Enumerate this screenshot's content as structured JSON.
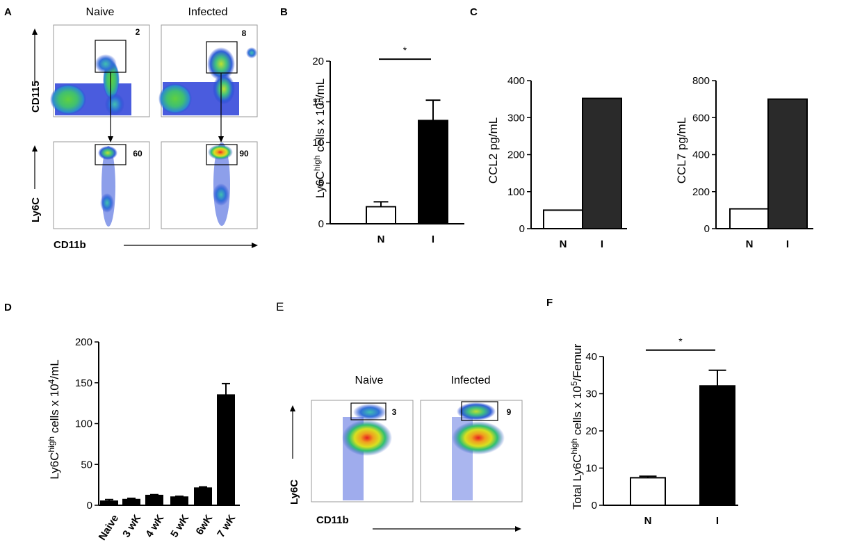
{
  "panel_labels": {
    "a": "A",
    "b": "B",
    "c": "C",
    "d": "D",
    "e": "E",
    "f": "F"
  },
  "panel_a": {
    "col_naive": "Naive",
    "col_infected": "Infected",
    "y_top": "CD115",
    "y_bottom": "Ly6C",
    "x_label": "CD11b",
    "gates": {
      "naive_top": "2",
      "infected_top": "8",
      "naive_bottom": "60",
      "infected_bottom": "90"
    }
  },
  "panel_e": {
    "col_naive": "Naive",
    "col_infected": "Infected",
    "y_label": "Ly6C",
    "x_label": "CD11b",
    "gates": {
      "naive": "3",
      "infected": "9"
    }
  },
  "chart_data": [
    {
      "id": "B",
      "type": "bar",
      "categories": [
        "N",
        "I"
      ],
      "values": [
        2.1,
        12.7
      ],
      "errors": [
        0.6,
        2.5
      ],
      "colors": [
        "#ffffff",
        "#000000"
      ],
      "ylabel": "Ly6Chigh cells x 105/mL",
      "ylim": [
        0,
        20
      ],
      "yticks": [
        0,
        5,
        10,
        15,
        20
      ],
      "significance": "*"
    },
    {
      "id": "C1",
      "type": "bar",
      "categories": [
        "N",
        "I"
      ],
      "values": [
        50,
        352
      ],
      "colors": [
        "#ffffff",
        "#2a2a2a"
      ],
      "ylabel": "CCL2 pg/mL",
      "ylim": [
        0,
        400
      ],
      "yticks": [
        0,
        100,
        200,
        300,
        400
      ]
    },
    {
      "id": "C2",
      "type": "bar",
      "categories": [
        "N",
        "I"
      ],
      "values": [
        107,
        700
      ],
      "colors": [
        "#ffffff",
        "#2a2a2a"
      ],
      "ylabel": "CCL7 pg/mL",
      "ylim": [
        0,
        800
      ],
      "yticks": [
        0,
        200,
        400,
        600,
        800
      ]
    },
    {
      "id": "D",
      "type": "bar",
      "categories": [
        "Naive",
        "3 wK",
        "4 wK",
        "5 wK",
        "6wK",
        "7 wK"
      ],
      "values": [
        5,
        7,
        12,
        10,
        21,
        135
      ],
      "errors": [
        2,
        1.5,
        1,
        1,
        1.5,
        14
      ],
      "colors": [
        "#000000",
        "#000000",
        "#000000",
        "#000000",
        "#000000",
        "#000000"
      ],
      "ylabel": "Ly6Chigh cells x 104/mL",
      "ylim": [
        0,
        200
      ],
      "yticks": [
        0,
        50,
        100,
        150,
        200
      ]
    },
    {
      "id": "F",
      "type": "bar",
      "categories": [
        "N",
        "I"
      ],
      "values": [
        7.4,
        32.1
      ],
      "errors": [
        0.4,
        4.2
      ],
      "colors": [
        "#ffffff",
        "#000000"
      ],
      "ylabel": "Total Ly6Chigh cells x 105/Femur",
      "ylim": [
        0,
        40
      ],
      "yticks": [
        0,
        10,
        20,
        30,
        40
      ],
      "significance": "*"
    }
  ]
}
